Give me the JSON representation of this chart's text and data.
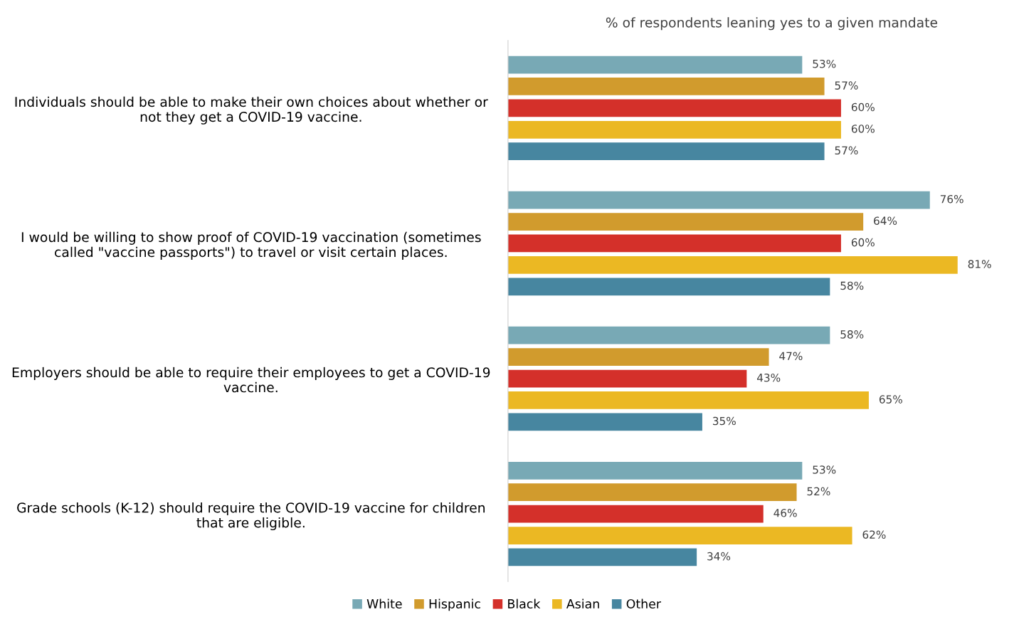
{
  "chart_data": {
    "type": "bar",
    "orientation": "horizontal",
    "title": "% of respondents leaning yes to a given mandate",
    "categories": [
      "Individuals should be able to make their own choices about whether or\nnot they get a COVID-19 vaccine.",
      "I would be willing to show proof of COVID-19 vaccination (sometimes\ncalled \"vaccine passports\") to travel or visit certain places.",
      "Employers should be able to require their employees to get a COVID-19\nvaccine.",
      "Grade schools (K-12) should require the COVID-19 vaccine for children\nthat are eligible."
    ],
    "series": [
      {
        "name": "White",
        "color": "#78a9b5",
        "values": [
          53,
          76,
          58,
          53
        ],
        "value_labels": [
          "53%",
          "76%",
          "58%",
          "53%"
        ]
      },
      {
        "name": "Hispanic",
        "color": "#d19b2d",
        "values": [
          57,
          64,
          47,
          52
        ],
        "value_labels": [
          "57%",
          "64%",
          "47%",
          "52%"
        ]
      },
      {
        "name": "Black",
        "color": "#d4302a",
        "values": [
          60,
          60,
          43,
          46
        ],
        "value_labels": [
          "60%",
          "60%",
          "43%",
          "46%"
        ]
      },
      {
        "name": "Asian",
        "color": "#ebb823",
        "values": [
          60,
          81,
          65,
          62
        ],
        "value_labels": [
          "60%",
          "81%",
          "65%",
          "62%"
        ]
      },
      {
        "name": "Other",
        "color": "#4786a0",
        "values": [
          57,
          58,
          35,
          34
        ],
        "value_labels": [
          "57%",
          "58%",
          "35%",
          "34%"
        ]
      }
    ],
    "legend": "bottom",
    "grid": false
  }
}
